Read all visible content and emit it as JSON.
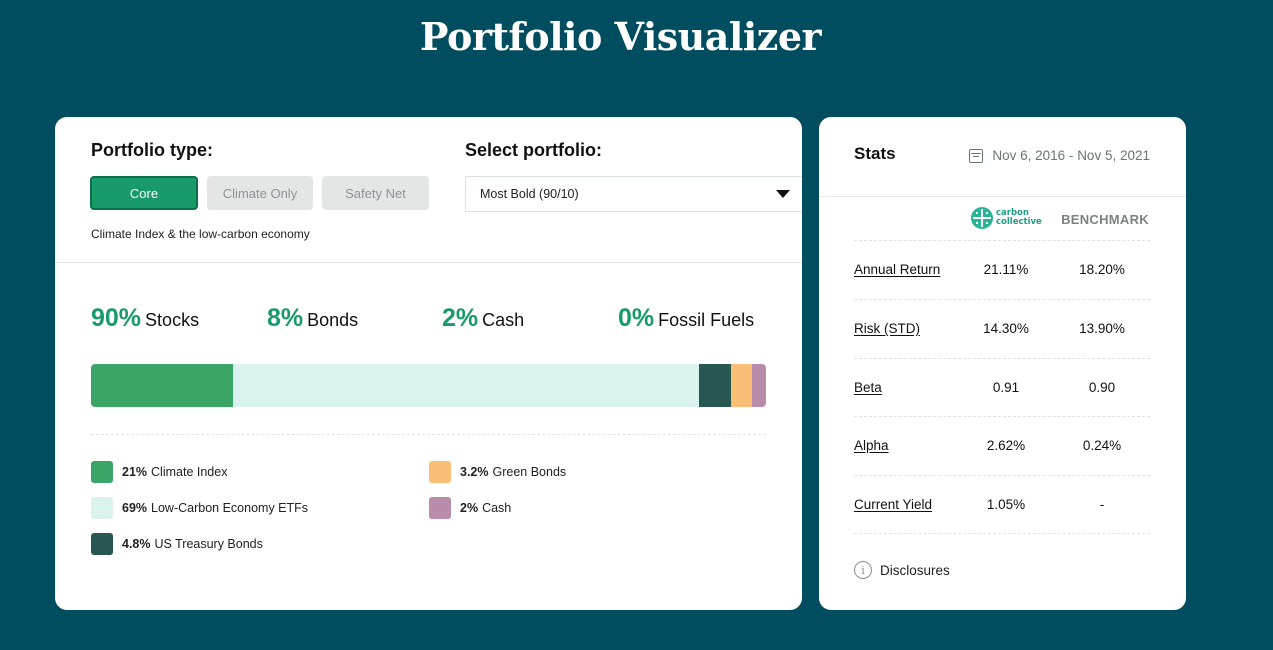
{
  "page": {
    "title": "Portfolio Visualizer"
  },
  "portfolio_type": {
    "label": "Portfolio type:",
    "options": [
      "Core",
      "Climate Only",
      "Safety Net"
    ],
    "selected": "Core",
    "description": "Climate Index & the low-carbon economy"
  },
  "select_portfolio": {
    "label": "Select portfolio:",
    "value": "Most Bold (90/10)"
  },
  "summary": [
    {
      "pct": "90%",
      "label": "Stocks"
    },
    {
      "pct": "8%",
      "label": "Bonds"
    },
    {
      "pct": "2%",
      "label": "Cash"
    },
    {
      "pct": "0%",
      "label": "Fossil Fuels"
    }
  ],
  "allocation": [
    {
      "pct": "21%",
      "label": "Climate Index",
      "value": 21,
      "color": "#3aa566"
    },
    {
      "pct": "69%",
      "label": "Low-Carbon Economy ETFs",
      "value": 69,
      "color": "#dbf3ef"
    },
    {
      "pct": "4.8%",
      "label": "US Treasury Bonds",
      "value": 4.8,
      "color": "#285752"
    },
    {
      "pct": "3.2%",
      "label": "Green Bonds",
      "value": 3.2,
      "color": "#fbbe77"
    },
    {
      "pct": "2%",
      "label": "Cash",
      "value": 2,
      "color": "#b98cab"
    }
  ],
  "stats": {
    "title": "Stats",
    "date_range": "Nov 6, 2016 - Nov 5, 2021",
    "logo_text_line1": "carbon",
    "logo_text_line2": "collective",
    "benchmark_label": "BENCHMARK",
    "rows": [
      {
        "name": "Annual Return",
        "cc": "21.11%",
        "bm": "18.20%"
      },
      {
        "name": "Risk (STD)",
        "cc": "14.30%",
        "bm": "13.90%"
      },
      {
        "name": "Beta",
        "cc": "0.91",
        "bm": "0.90"
      },
      {
        "name": "Alpha",
        "cc": "2.62%",
        "bm": "0.24%"
      },
      {
        "name": "Current Yield",
        "cc": "1.05%",
        "bm": "-"
      }
    ],
    "disclosures": "Disclosures"
  },
  "colors": {
    "background": "#004d5f",
    "accent": "#199a6b"
  }
}
